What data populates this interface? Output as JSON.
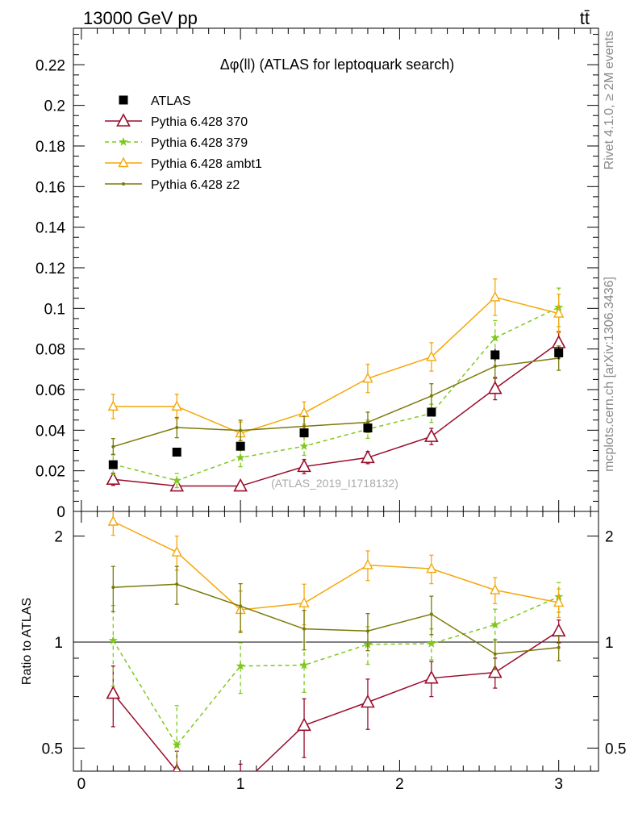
{
  "header": {
    "energy_label": "13000 GeV pp",
    "process_label": "tt̄",
    "side_top": "Rivet 4.1.0, ≥ 2M events",
    "side_bottom": "mcplots.cern.ch [arXiv:1306.3436]"
  },
  "chart_data": [
    {
      "type": "line",
      "title": "Δφ(ll) (ATLAS for leptoquark search)",
      "watermark": "(ATLAS_2019_I1718132)",
      "xlabel": "",
      "ylabel": "",
      "xlim": [
        -0.05,
        3.25
      ],
      "ylim": [
        0,
        0.238
      ],
      "xticks": [
        0,
        1,
        2,
        3
      ],
      "yticks": [
        0,
        0.02,
        0.04,
        0.06,
        0.08,
        0.1,
        0.12,
        0.14,
        0.16,
        0.18,
        0.2,
        0.22
      ],
      "ytick_labels": [
        "0",
        "0.02",
        "0.04",
        "0.06",
        "0.08",
        "0.1",
        "0.12",
        "0.14",
        "0.16",
        "0.18",
        "0.2",
        "0.22"
      ],
      "legend_position": "top-left",
      "x": [
        0.2,
        0.6,
        1.0,
        1.4,
        1.8,
        2.2,
        2.6,
        3.0
      ],
      "series": [
        {
          "name": "ATLAS",
          "color": "#000000",
          "style": "data",
          "marker": "square",
          "values": [
            0.023,
            0.0292,
            0.0321,
            0.0387,
            0.0411,
            0.0489,
            0.0771,
            0.0781
          ],
          "errors": [
            0.001,
            0.001,
            0.002,
            0.002,
            0.002,
            0.002,
            0.003,
            0.003
          ]
        },
        {
          "name": "Pythia 6.428 370",
          "color": "#9a0e2c",
          "style": "solid",
          "marker": "triangle-open-large",
          "values": [
            0.0158,
            0.0125,
            0.0125,
            0.0221,
            0.0265,
            0.0369,
            0.0605,
            0.0831
          ],
          "errors": [
            0.003,
            0.001,
            0.0015,
            0.0035,
            0.003,
            0.004,
            0.0055,
            0.0055
          ]
        },
        {
          "name": "Pythia 6.428 379",
          "color": "#7ec81c",
          "style": "dashed",
          "marker": "star",
          "values": [
            0.0232,
            0.0152,
            0.0265,
            0.0321,
            0.0405,
            0.0483,
            0.0855,
            0.1005
          ],
          "errors": [
            0.005,
            0.0035,
            0.0045,
            0.0045,
            0.0045,
            0.0045,
            0.0085,
            0.0095
          ]
        },
        {
          "name": "Pythia 6.428 ambt1",
          "color": "#f5a70a",
          "style": "solid",
          "marker": "triangle-open",
          "values": [
            0.0517,
            0.0517,
            0.0385,
            0.0485,
            0.0655,
            0.0761,
            0.1055,
            0.0975
          ],
          "errors": [
            0.006,
            0.006,
            0.0055,
            0.0055,
            0.007,
            0.007,
            0.009,
            0.0095
          ]
        },
        {
          "name": "Pythia 6.428 z2",
          "color": "#7a7a0a",
          "style": "solid",
          "marker": "dot",
          "values": [
            0.0319,
            0.0413,
            0.0399,
            0.0419,
            0.0439,
            0.0569,
            0.0715,
            0.0755
          ],
          "errors": [
            0.004,
            0.005,
            0.005,
            0.005,
            0.005,
            0.006,
            0.006,
            0.006
          ]
        }
      ]
    },
    {
      "type": "line",
      "title": "",
      "xlabel": "",
      "ylabel": "Ratio to ATLAS",
      "xlim": [
        -0.05,
        3.25
      ],
      "ylim": [
        0.43,
        2.35
      ],
      "yscale": "log",
      "xticks": [
        0,
        1,
        2,
        3
      ],
      "xtick_labels": [
        "0",
        "1",
        "2",
        "3"
      ],
      "yticks": [
        0.5,
        1,
        2
      ],
      "ytick_labels": [
        "0.5",
        "1",
        "2"
      ],
      "reference_line": 1,
      "x": [
        0.2,
        0.6,
        1.0,
        1.4,
        1.8,
        2.2,
        2.6,
        3.0
      ],
      "series": [
        {
          "name": "Pythia 6.428 370",
          "color": "#9a0e2c",
          "style": "solid",
          "marker": "triangle-open-large",
          "values": [
            0.715,
            0.43,
            0.39,
            0.58,
            0.675,
            0.79,
            0.82,
            1.075
          ],
          "errors": [
            0.14,
            0.06,
            0.06,
            0.11,
            0.11,
            0.09,
            0.08,
            0.08
          ]
        },
        {
          "name": "Pythia 6.428 379",
          "color": "#7ec81c",
          "style": "dashed",
          "marker": "star",
          "values": [
            1.01,
            0.51,
            0.855,
            0.86,
            0.985,
            0.99,
            1.12,
            1.345
          ],
          "errors": [
            0.26,
            0.15,
            0.14,
            0.14,
            0.12,
            0.1,
            0.12,
            0.13
          ]
        },
        {
          "name": "Pythia 6.428 ambt1",
          "color": "#f5a70a",
          "style": "solid",
          "marker": "triangle-open",
          "values": [
            2.2,
            1.8,
            1.235,
            1.29,
            1.655,
            1.615,
            1.405,
            1.295
          ],
          "errors": [
            0.19,
            0.2,
            0.16,
            0.17,
            0.16,
            0.15,
            0.12,
            0.12
          ]
        },
        {
          "name": "Pythia 6.428 z2",
          "color": "#7a7a0a",
          "style": "solid",
          "marker": "dot",
          "values": [
            1.43,
            1.46,
            1.265,
            1.09,
            1.075,
            1.2,
            0.925,
            0.965
          ],
          "errors": [
            0.21,
            0.18,
            0.2,
            0.14,
            0.13,
            0.15,
            0.09,
            0.08
          ]
        }
      ]
    }
  ]
}
